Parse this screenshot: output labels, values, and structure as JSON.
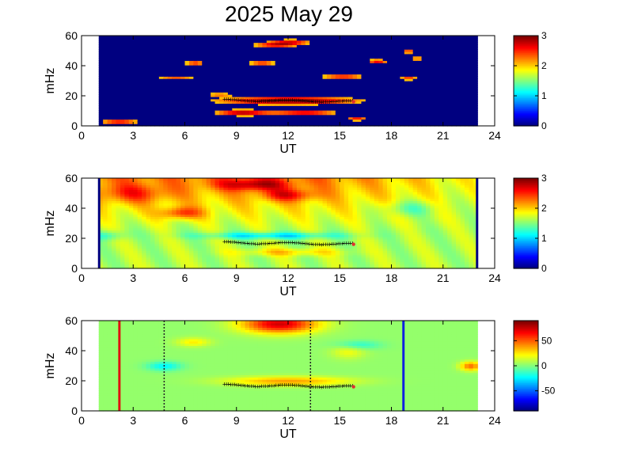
{
  "title": "2025 May 29",
  "chart_data": [
    {
      "type": "heatmap",
      "title": "2025 May 29",
      "xlabel": "UT",
      "ylabel": "mHz",
      "xlim": [
        0,
        24
      ],
      "ylim": [
        0,
        60
      ],
      "xticks": [
        "0",
        "3",
        "6",
        "9",
        "12",
        "15",
        "18",
        "21",
        "24"
      ],
      "yticks": [
        "0",
        "20",
        "40",
        "60"
      ],
      "data_extent_ut": [
        1,
        23
      ],
      "colorbar": {
        "min": 0,
        "max": 3,
        "ticks": [
          "0",
          "1",
          "2",
          "3"
        ]
      },
      "tracked_peak": {
        "ut_start": 8.3,
        "ut_end": 15.8,
        "mhz_start": 17,
        "mhz_end": 16
      }
    },
    {
      "type": "heatmap",
      "xlabel": "UT",
      "ylabel": "mHz",
      "xlim": [
        0,
        24
      ],
      "ylim": [
        0,
        60
      ],
      "xticks": [
        "0",
        "3",
        "6",
        "9",
        "12",
        "15",
        "18",
        "21",
        "24"
      ],
      "yticks": [
        "0",
        "20",
        "40",
        "60"
      ],
      "data_extent_ut": [
        1,
        23
      ],
      "colorbar": {
        "min": 0,
        "max": 3,
        "ticks": [
          "0",
          "1",
          "2",
          "3"
        ]
      },
      "tracked_peak": {
        "ut_start": 8.3,
        "ut_end": 15.8,
        "mhz_start": 17,
        "mhz_end": 16
      }
    },
    {
      "type": "heatmap",
      "xlabel": "UT",
      "ylabel": "mHz",
      "xlim": [
        0,
        24
      ],
      "ylim": [
        0,
        60
      ],
      "xticks": [
        "0",
        "3",
        "6",
        "9",
        "12",
        "15",
        "18",
        "21",
        "24"
      ],
      "yticks": [
        "0",
        "20",
        "40",
        "60"
      ],
      "data_extent_ut": [
        1,
        23
      ],
      "colorbar": {
        "min": -90,
        "max": 90,
        "ticks": [
          "50",
          "0",
          "-50"
        ]
      },
      "tracked_peak": {
        "ut_start": 8.3,
        "ut_end": 15.8,
        "mhz_start": 17,
        "mhz_end": 16
      },
      "vertical_markers": [
        {
          "ut": 2.2,
          "style": "solid",
          "color": "#e01010"
        },
        {
          "ut": 4.8,
          "style": "dotted",
          "color": "#222222"
        },
        {
          "ut": 13.3,
          "style": "dotted",
          "color": "#222222"
        },
        {
          "ut": 18.7,
          "style": "solid",
          "color": "#1020e0"
        }
      ]
    }
  ]
}
